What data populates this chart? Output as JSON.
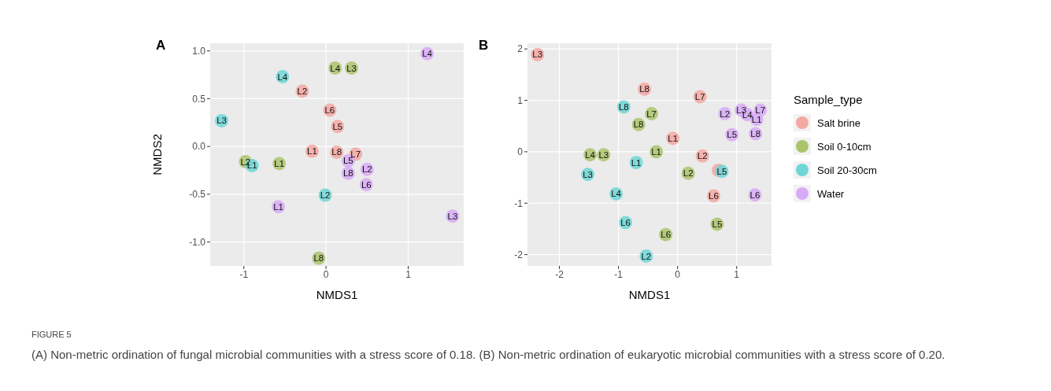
{
  "chart_data": [
    {
      "type": "scatter",
      "title": "A",
      "xlabel": "NMDS1",
      "ylabel": "NMDS2",
      "xlim": [
        -1.41,
        1.675
      ],
      "ylim": [
        -1.25,
        1.08
      ],
      "xticks": [
        -1,
        0,
        1
      ],
      "yticks": [
        {
          "value": -1,
          "label": "-1.0"
        },
        {
          "value": -0.5,
          "label": "-0.5"
        },
        {
          "value": 0,
          "label": "0.0"
        },
        {
          "value": 0.5,
          "label": "0.5"
        },
        {
          "value": 1,
          "label": "1.0"
        }
      ],
      "grid": true,
      "marker": "circle",
      "series": [
        {
          "color": "#f4a8a2",
          "x": [
            -0.29,
            0.045,
            0.14,
            -0.17,
            0.13,
            0.36
          ],
          "values": [
            0.58,
            0.38,
            0.21,
            -0.05,
            -0.06,
            -0.08
          ],
          "value_labels": [
            "L2",
            "L6",
            "L5",
            "L1",
            "L8",
            "L7"
          ]
        },
        {
          "color": "#abc46c",
          "x": [
            0.11,
            0.31,
            -0.98,
            -0.57,
            -0.09
          ],
          "values": [
            0.82,
            0.82,
            -0.16,
            -0.18,
            -1.17
          ],
          "value_labels": [
            "L4",
            "L3",
            "L2",
            "L1",
            "L8"
          ]
        },
        {
          "color": "#6fd6d6",
          "x": [
            -0.53,
            -1.27,
            -0.9,
            -0.01
          ],
          "values": [
            0.73,
            0.27,
            -0.2,
            -0.51
          ],
          "value_labels": [
            "L4",
            "L3",
            "L1",
            "L2"
          ]
        },
        {
          "color": "#d8aaf6",
          "x": [
            1.23,
            0.27,
            0.27,
            0.5,
            0.49,
            -0.58,
            1.54
          ],
          "values": [
            0.97,
            -0.15,
            -0.28,
            -0.24,
            -0.4,
            -0.63,
            -0.73
          ],
          "value_labels": [
            "L4",
            "L5",
            "L8",
            "L2",
            "L6",
            "L1",
            "L3"
          ]
        }
      ],
      "annotations": [
        "FIGURE 5",
        "(A) Non-metric ordination of fungal microbial communities with a stress score of 0.18. (B) Non-metric ordination of eukaryotic microbial communities with a stress score of 0.20."
      ]
    },
    {
      "type": "scatter",
      "title": "B",
      "xlabel": "NMDS1",
      "xlim": [
        -2.54,
        1.59
      ],
      "ylim": [
        -2.22,
        2.11
      ],
      "xticks": [
        -2,
        -1,
        0,
        1
      ],
      "yticks": [
        -2,
        -1,
        0,
        1,
        2
      ],
      "grid": true,
      "legend": "right",
      "legend_title": "Sample_type",
      "marker": "circle",
      "series": [
        {
          "name": "Salt brine",
          "color": "#f4a8a2",
          "x": [
            -2.37,
            -0.56,
            0.38,
            -0.08,
            0.42,
            0.69,
            0.61
          ],
          "values": [
            1.89,
            1.22,
            1.07,
            0.26,
            -0.08,
            -0.36,
            -0.86
          ],
          "value_labels": [
            "L3",
            "L8",
            "L7",
            "L1",
            "L2",
            null,
            "L6"
          ]
        },
        {
          "name": "Soil 0-10cm",
          "color": "#abc46c",
          "x": [
            -0.44,
            -0.66,
            -1.48,
            -1.25,
            -0.36,
            0.18,
            0.67,
            -0.2
          ],
          "values": [
            0.74,
            0.53,
            -0.06,
            -0.06,
            0.0,
            -0.42,
            -1.41,
            -1.61
          ],
          "value_labels": [
            "L7",
            "L8",
            "L4",
            "L3",
            "L1",
            "L2",
            "L5",
            "L6"
          ]
        },
        {
          "name": "Soil 20-30cm",
          "color": "#6fd6d6",
          "x": [
            -0.91,
            -0.7,
            -1.52,
            -1.04,
            -0.88,
            -0.53,
            0.75
          ],
          "values": [
            0.87,
            -0.21,
            -0.44,
            -0.82,
            -1.38,
            -2.03,
            -0.38
          ],
          "value_labels": [
            "L8",
            "L1",
            "L3",
            "L4",
            "L6",
            "L2",
            "L5"
          ]
        },
        {
          "name": "Water",
          "color": "#d8aaf6",
          "x": [
            0.8,
            1.08,
            1.18,
            1.4,
            1.34,
            0.92,
            1.32,
            1.31
          ],
          "values": [
            0.74,
            0.81,
            0.72,
            0.81,
            0.63,
            0.33,
            0.35,
            -0.84
          ],
          "value_labels": [
            "L2",
            "L3",
            "L4",
            "L7",
            "L1",
            "L5",
            "L8",
            "L6"
          ]
        }
      ]
    }
  ]
}
